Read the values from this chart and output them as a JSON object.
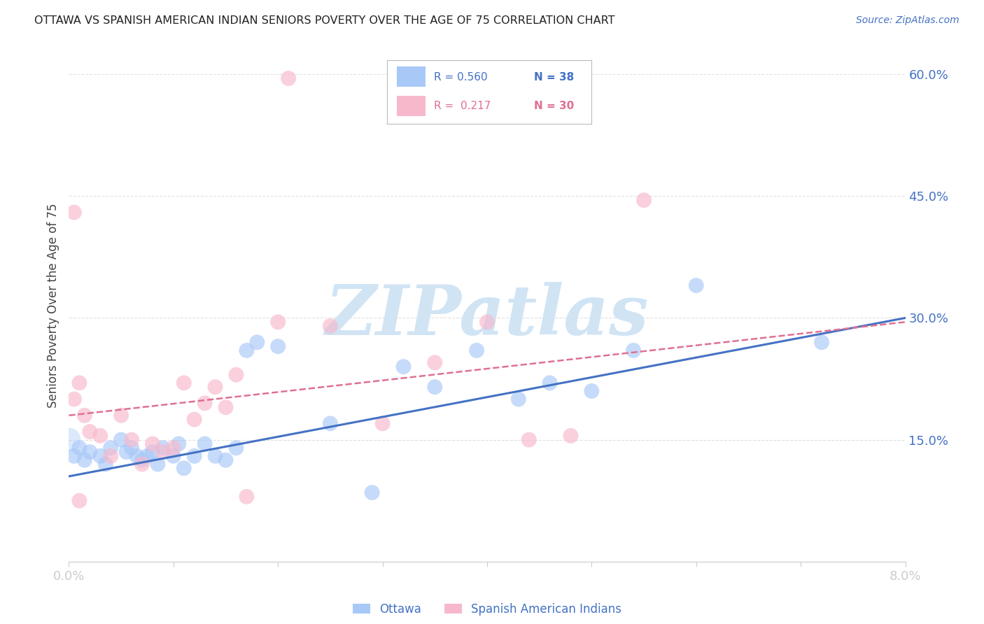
{
  "title": "OTTAWA VS SPANISH AMERICAN INDIAN SENIORS POVERTY OVER THE AGE OF 75 CORRELATION CHART",
  "source": "Source: ZipAtlas.com",
  "ylabel": "Seniors Poverty Over the Age of 75",
  "xmin": 0.0,
  "xmax": 8.0,
  "ymin": 0.0,
  "ymax": 63.0,
  "ottawa_R": 0.56,
  "ottawa_N": 38,
  "spanish_R": 0.217,
  "spanish_N": 30,
  "ottawa_color": "#a8c8f8",
  "spanish_color": "#f8b8cc",
  "ottawa_line_color": "#4472c4",
  "spanish_line_color": "#e07090",
  "title_color": "#333333",
  "axis_label_color": "#4472c4",
  "right_tick_color": "#4472c4",
  "watermark": "ZIPatlas",
  "watermark_color": "#d0e4f4",
  "background_color": "#ffffff",
  "grid_color": "#e0e0e0",
  "ottawa_x": [
    0.05,
    0.1,
    0.15,
    0.2,
    0.3,
    0.35,
    0.4,
    0.5,
    0.55,
    0.6,
    0.65,
    0.7,
    0.75,
    0.8,
    0.85,
    0.9,
    1.0,
    1.05,
    1.1,
    1.2,
    1.3,
    1.4,
    1.5,
    1.6,
    1.7,
    1.8,
    2.0,
    2.5,
    2.9,
    3.2,
    3.5,
    3.9,
    4.3,
    4.6,
    5.0,
    5.4,
    6.0,
    7.2
  ],
  "ottawa_y": [
    13.0,
    14.0,
    12.5,
    13.5,
    13.0,
    12.0,
    14.0,
    15.0,
    13.5,
    14.0,
    13.0,
    12.5,
    13.0,
    13.5,
    12.0,
    14.0,
    13.0,
    14.5,
    11.5,
    13.0,
    14.5,
    13.0,
    12.5,
    14.0,
    26.0,
    27.0,
    26.5,
    17.0,
    8.5,
    24.0,
    21.5,
    26.0,
    20.0,
    22.0,
    21.0,
    26.0,
    34.0,
    27.0
  ],
  "spanish_x": [
    0.05,
    0.1,
    0.15,
    0.2,
    0.3,
    0.4,
    0.5,
    0.6,
    0.7,
    0.8,
    0.9,
    1.0,
    1.1,
    1.2,
    1.3,
    1.4,
    1.5,
    1.6,
    1.7,
    2.0,
    2.1,
    2.5,
    3.0,
    3.5,
    4.0,
    4.4,
    4.8,
    5.5,
    0.05,
    0.1
  ],
  "spanish_y": [
    20.0,
    22.0,
    18.0,
    16.0,
    15.5,
    13.0,
    18.0,
    15.0,
    12.0,
    14.5,
    13.5,
    14.0,
    22.0,
    17.5,
    19.5,
    21.5,
    19.0,
    23.0,
    8.0,
    29.5,
    59.5,
    29.0,
    17.0,
    24.5,
    29.5,
    15.0,
    15.5,
    44.5,
    43.0,
    7.5
  ],
  "ottawa_line_y0": 10.5,
  "ottawa_line_y8": 30.0,
  "spanish_line_y0": 18.0,
  "spanish_line_y8": 29.5
}
